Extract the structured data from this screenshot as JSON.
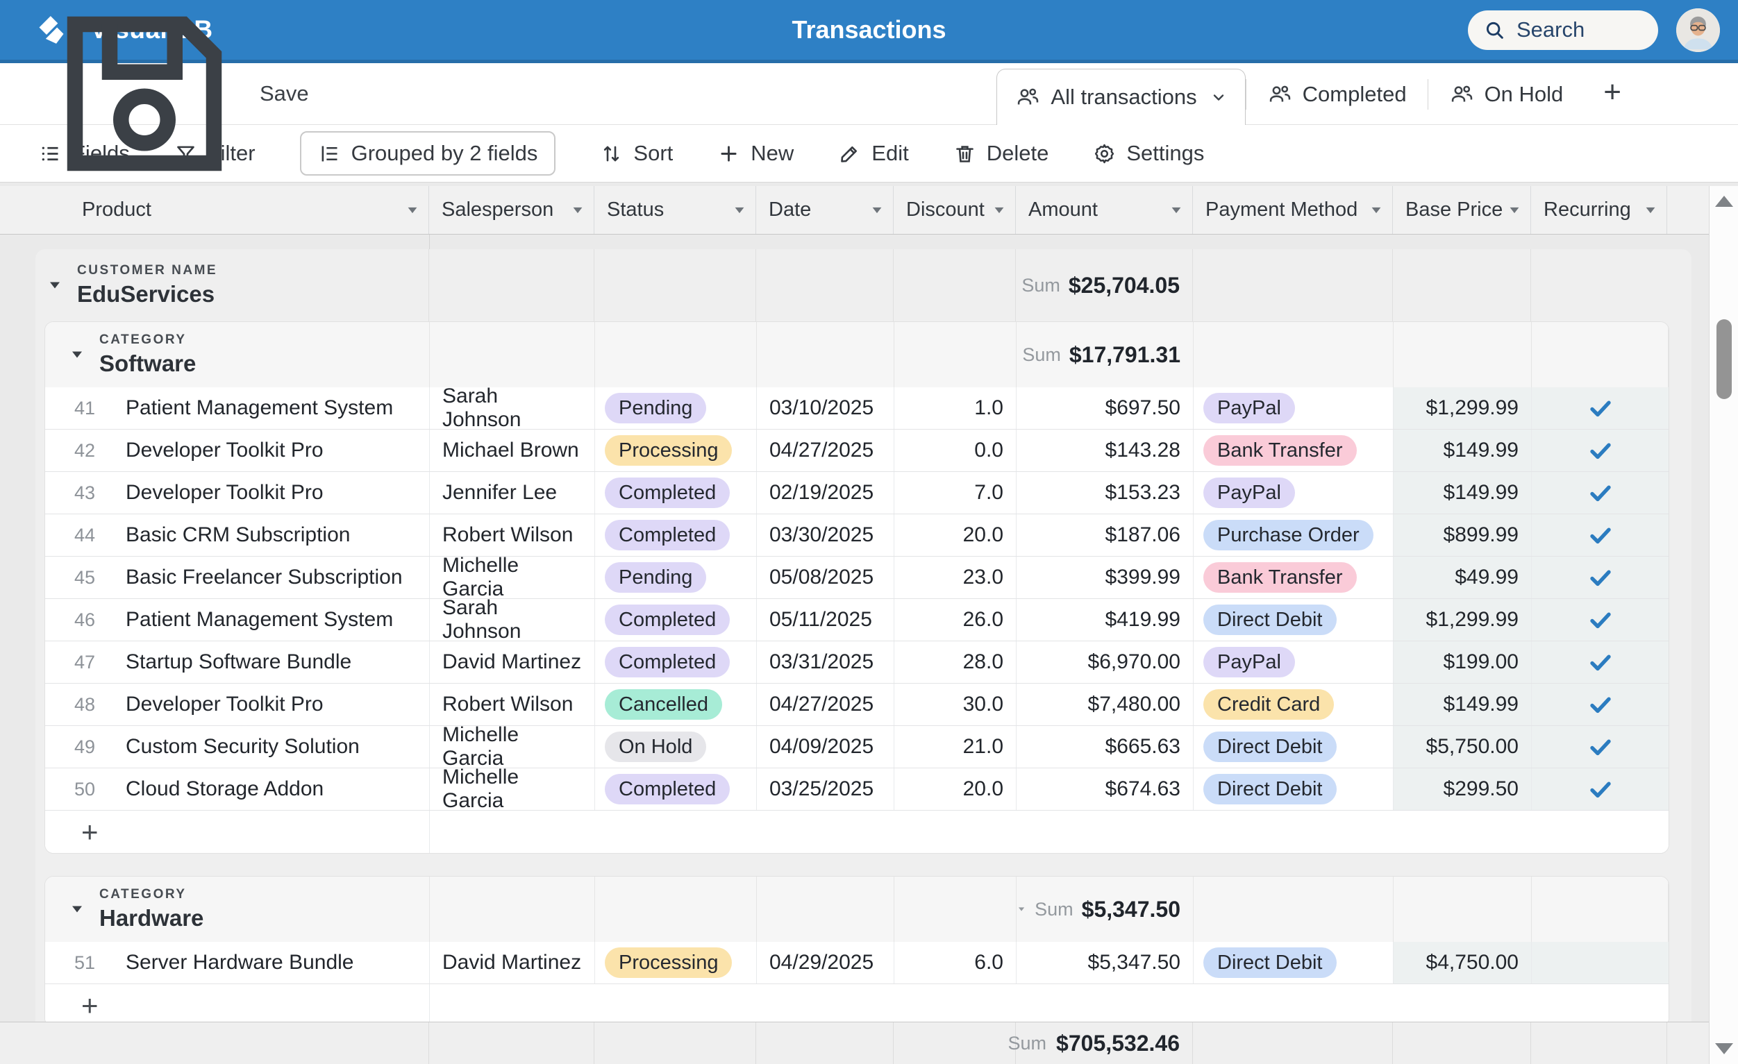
{
  "header": {
    "app_title": "Visual DB",
    "page_title": "Transactions",
    "search_placeholder": "Search"
  },
  "actions": {
    "save": "Save",
    "add_view": "+",
    "add_row": "+"
  },
  "views": [
    {
      "label": "All transactions",
      "active": true,
      "has_caret": true
    },
    {
      "label": "Completed",
      "active": false,
      "has_caret": false
    },
    {
      "label": "On Hold",
      "active": false,
      "has_caret": false
    }
  ],
  "toolbar": [
    {
      "icon": "fields-icon",
      "label": "Fields",
      "boxed": false
    },
    {
      "icon": "filter-icon",
      "label": "Filter",
      "boxed": false
    },
    {
      "icon": "group-icon",
      "label": "Grouped by 2 fields",
      "boxed": true
    },
    {
      "icon": "sort-icon",
      "label": "Sort",
      "boxed": false
    },
    {
      "icon": "plus-icon",
      "label": "New",
      "boxed": false
    },
    {
      "icon": "edit-icon",
      "label": "Edit",
      "boxed": false
    },
    {
      "icon": "delete-icon",
      "label": "Delete",
      "boxed": false
    },
    {
      "icon": "settings-icon",
      "label": "Settings",
      "boxed": false
    }
  ],
  "columns": [
    "Product",
    "Salesperson",
    "Status",
    "Date",
    "Discount",
    "Amount",
    "Payment Method",
    "Base Price",
    "Recurring"
  ],
  "group": {
    "field_label": "CUSTOMER NAME",
    "name": "EduServices",
    "sum_label": "Sum",
    "sum_value": "$25,704.05",
    "subgroups": [
      {
        "field_label": "CATEGORY",
        "name": "Software",
        "sum_label": "Sum",
        "sum_value": "$17,791.31",
        "rows": [
          {
            "num": "41",
            "product": "Patient Management System",
            "salesperson": "Sarah Johnson",
            "status": "Pending",
            "date": "03/10/2025",
            "discount": "1.0",
            "amount": "$697.50",
            "payment": "PayPal",
            "base_price": "$1,299.99",
            "recurring": true
          },
          {
            "num": "42",
            "product": "Developer Toolkit Pro",
            "salesperson": "Michael Brown",
            "status": "Processing",
            "date": "04/27/2025",
            "discount": "0.0",
            "amount": "$143.28",
            "payment": "Bank Transfer",
            "base_price": "$149.99",
            "recurring": true
          },
          {
            "num": "43",
            "product": "Developer Toolkit Pro",
            "salesperson": "Jennifer Lee",
            "status": "Completed",
            "date": "02/19/2025",
            "discount": "7.0",
            "amount": "$153.23",
            "payment": "PayPal",
            "base_price": "$149.99",
            "recurring": true
          },
          {
            "num": "44",
            "product": "Basic CRM Subscription",
            "salesperson": "Robert Wilson",
            "status": "Completed",
            "date": "03/30/2025",
            "discount": "20.0",
            "amount": "$187.06",
            "payment": "Purchase Order",
            "base_price": "$899.99",
            "recurring": true
          },
          {
            "num": "45",
            "product": "Basic Freelancer Subscription",
            "salesperson": "Michelle Garcia",
            "status": "Pending",
            "date": "05/08/2025",
            "discount": "23.0",
            "amount": "$399.99",
            "payment": "Bank Transfer",
            "base_price": "$49.99",
            "recurring": true
          },
          {
            "num": "46",
            "product": "Patient Management System",
            "salesperson": "Sarah Johnson",
            "status": "Completed",
            "date": "05/11/2025",
            "discount": "26.0",
            "amount": "$419.99",
            "payment": "Direct Debit",
            "base_price": "$1,299.99",
            "recurring": true
          },
          {
            "num": "47",
            "product": "Startup Software Bundle",
            "salesperson": "David Martinez",
            "status": "Completed",
            "date": "03/31/2025",
            "discount": "28.0",
            "amount": "$6,970.00",
            "payment": "PayPal",
            "base_price": "$199.00",
            "recurring": true
          },
          {
            "num": "48",
            "product": "Developer Toolkit Pro",
            "salesperson": "Robert Wilson",
            "status": "Cancelled",
            "date": "04/27/2025",
            "discount": "30.0",
            "amount": "$7,480.00",
            "payment": "Credit Card",
            "base_price": "$149.99",
            "recurring": true
          },
          {
            "num": "49",
            "product": "Custom Security Solution",
            "salesperson": "Michelle Garcia",
            "status": "On Hold",
            "date": "04/09/2025",
            "discount": "21.0",
            "amount": "$665.63",
            "payment": "Direct Debit",
            "base_price": "$5,750.00",
            "recurring": true
          },
          {
            "num": "50",
            "product": "Cloud Storage Addon",
            "salesperson": "Michelle Garcia",
            "status": "Completed",
            "date": "03/25/2025",
            "discount": "20.0",
            "amount": "$674.63",
            "payment": "Direct Debit",
            "base_price": "$299.50",
            "recurring": true
          }
        ]
      },
      {
        "field_label": "CATEGORY",
        "name": "Hardware",
        "sum_label": "Sum",
        "sum_value": "$5,347.50",
        "rows": [
          {
            "num": "51",
            "product": "Server Hardware Bundle",
            "salesperson": "David Martinez",
            "status": "Processing",
            "date": "04/29/2025",
            "discount": "6.0",
            "amount": "$5,347.50",
            "payment": "Direct Debit",
            "base_price": "$4,750.00",
            "recurring": false
          }
        ]
      }
    ]
  },
  "footer": {
    "sum_label": "Sum",
    "sum_value": "$705,532.46"
  },
  "chips": {
    "status": {
      "Pending": "#ded8f7",
      "Processing": "#fbe3ab",
      "Completed": "#ded8f7",
      "Cancelled": "#a7ecd6",
      "On Hold": "#e6e6ea"
    },
    "payment": {
      "PayPal": "#ded8f7",
      "Bank Transfer": "#facbd8",
      "Purchase Order": "#cadcf8",
      "Direct Debit": "#cadcf8",
      "Credit Card": "#fbe3ab"
    }
  },
  "colors": {
    "accent": "#2e80c5",
    "check": "#2b7cc0"
  }
}
